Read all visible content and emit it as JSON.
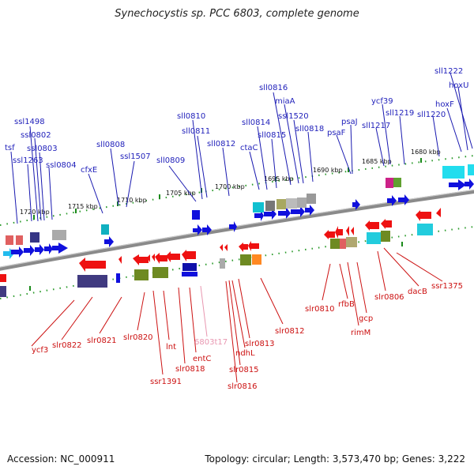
{
  "title": "Synechocystis sp. PCC 6803, complete genome",
  "footer": {
    "accession": "Accession: NC_000911",
    "summary": "Topology: circular; Length: 3,573,470 bp; Genes: 3,222"
  },
  "colors": {
    "upper_label": "#2222bb",
    "lower_label": "#cc1111",
    "rna_label": "#e896b0"
  },
  "scale_ticks": [
    "1720 kbp",
    "1715 kbp",
    "1710 kbp",
    "1705 kbp",
    "1700 kbp",
    "1695 kbp",
    "1690 kbp",
    "1685 kbp",
    "1680 kbp"
  ],
  "upper_labels": [
    "tsf",
    "ssl1263",
    "ssl1498",
    "ssl0802",
    "ssl0803",
    "ssl0804",
    "cfxE",
    "sll0808",
    "ssl1507",
    "sll0809",
    "sll0810",
    "sll0811",
    "sll0812",
    "ctaC",
    "sll0814",
    "sll0815",
    "sll0816",
    "miaA",
    "ssl1520",
    "sll0818",
    "psaF",
    "psaJ",
    "sll1217",
    "ycf39",
    "sll1219",
    "sll1220",
    "hoxF",
    "hoxU",
    "sll1222"
  ],
  "lower_labels": [
    "ycf3",
    "slr0822",
    "slr0821",
    "slr0820",
    "ssr1391",
    "lnt",
    "slr0818",
    "entC",
    "slr0816",
    "slr0815",
    "ndhL",
    "slr0813",
    "slr0812",
    "slr0810",
    "rfbB",
    "rimM",
    "gcp",
    "slr0806",
    "dacB",
    "ssr1375"
  ],
  "rna_labels": [
    "6803t17"
  ]
}
